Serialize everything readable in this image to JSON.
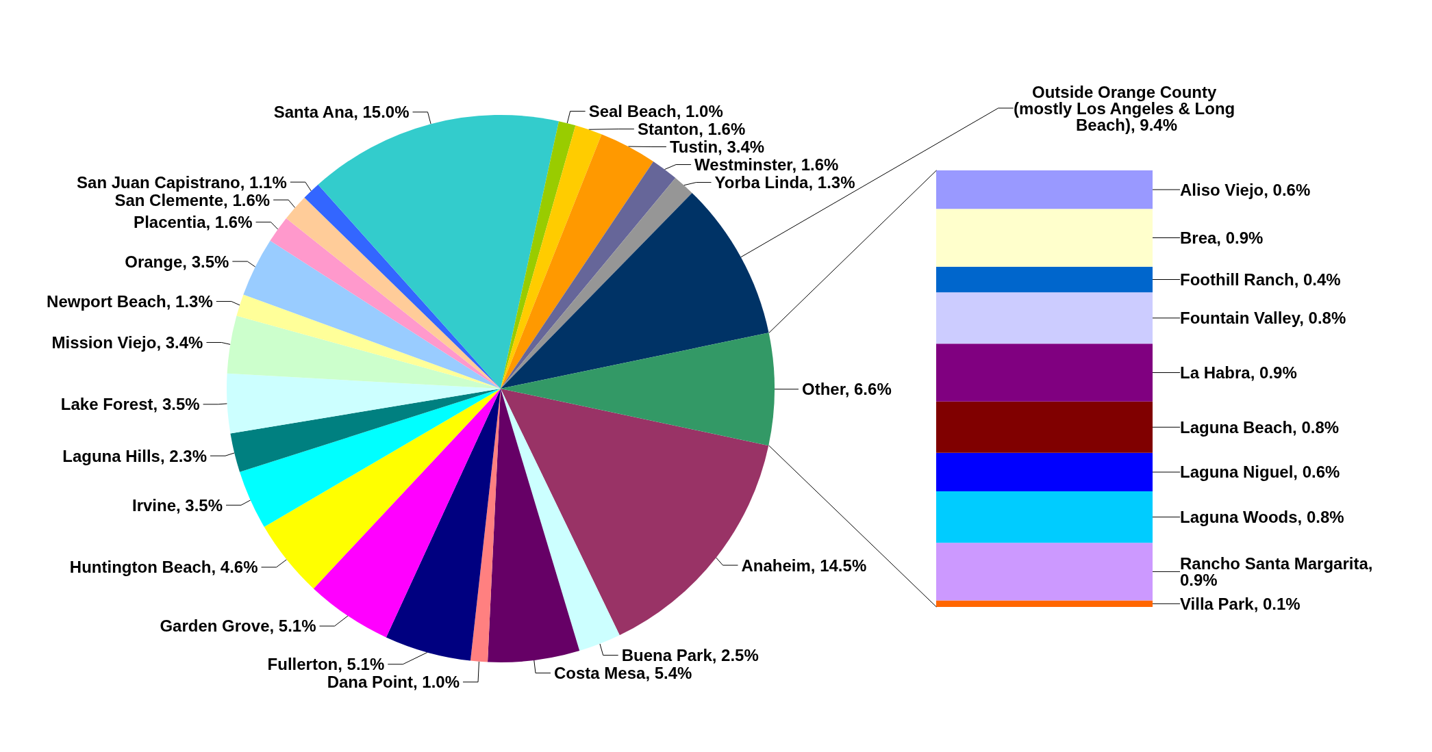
{
  "chart_data": [
    {
      "type": "pie",
      "categories": [
        "Anaheim",
        "Buena Park",
        "Costa Mesa",
        "Dana Point",
        "Fullerton",
        "Garden Grove",
        "Huntington Beach",
        "Irvine",
        "Laguna Hills",
        "Lake Forest",
        "Mission Viejo",
        "Newport Beach",
        "Orange",
        "Placentia",
        "San Clemente",
        "San Juan Capistrano",
        "Santa Ana",
        "Seal Beach",
        "Stanton",
        "Tustin",
        "Westminster",
        "Yorba Linda",
        "Outside Orange County (mostly Los Angeles & Long Beach)",
        "Other"
      ],
      "values": [
        14.5,
        2.5,
        5.4,
        1.0,
        5.1,
        5.1,
        4.6,
        3.5,
        2.3,
        3.5,
        3.4,
        1.3,
        3.5,
        1.6,
        1.6,
        1.1,
        15.0,
        1.0,
        1.6,
        3.4,
        1.6,
        1.3,
        9.4,
        6.6
      ],
      "value_labels": [
        "14.5%",
        "2.5%",
        "5.4%",
        "1.0%",
        "5.1%",
        "5.1%",
        "4.6%",
        "3.5%",
        "2.3%",
        "3.5%",
        "3.4%",
        "1.3%",
        "3.5%",
        "1.6%",
        "1.6%",
        "1.1%",
        "15.0%",
        "1.0%",
        "1.6%",
        "3.4%",
        "1.6%",
        "1.3%",
        "9.4%",
        "6.6%"
      ],
      "colors": [
        "#993366",
        "#ccffff",
        "#660066",
        "#ff8080",
        "#000080",
        "#ff00ff",
        "#ffff00",
        "#00ffff",
        "#008080",
        "#ccffff",
        "#ccffcc",
        "#ffff99",
        "#99ccff",
        "#ff99cc",
        "#ffcc99",
        "#3366ff",
        "#33cccc",
        "#99cc00",
        "#ffcc00",
        "#ff9900",
        "#666699",
        "#969696",
        "#003366",
        "#339966"
      ]
    },
    {
      "type": "bar",
      "stacked": true,
      "categories": [
        null
      ],
      "series": [
        {
          "color": "#ff6600",
          "values": [
            0.1
          ],
          "value_labels": [
            "Villa Park, 0.1%"
          ]
        },
        {
          "color": "#cc99ff",
          "values": [
            0.9
          ],
          "value_labels": [
            "Rancho Santa Margarita, 0.9%"
          ]
        },
        {
          "color": "#00ccff",
          "values": [
            0.8
          ],
          "value_labels": [
            "Laguna Woods, 0.8%"
          ]
        },
        {
          "color": "#0000ff",
          "values": [
            0.6
          ],
          "value_labels": [
            "Laguna Niguel, 0.6%"
          ]
        },
        {
          "color": "#800000",
          "values": [
            0.8
          ],
          "value_labels": [
            "Laguna Beach, 0.8%"
          ]
        },
        {
          "color": "#800080",
          "values": [
            0.9
          ],
          "value_labels": [
            "La Habra, 0.9%"
          ]
        },
        {
          "color": "#ccccff",
          "values": [
            0.8
          ],
          "value_labels": [
            "Fountain Valley, 0.8%"
          ]
        },
        {
          "color": "#0066cc",
          "values": [
            0.4
          ],
          "value_labels": [
            "Foothill Ranch, 0.4%"
          ]
        },
        {
          "color": "#ffffcc",
          "values": [
            0.9
          ],
          "value_labels": [
            "Brea, 0.9%"
          ]
        },
        {
          "color": "#9999ff",
          "values": [
            0.6
          ],
          "value_labels": [
            "Aliso Viejo, 0.6%"
          ]
        }
      ]
    }
  ]
}
